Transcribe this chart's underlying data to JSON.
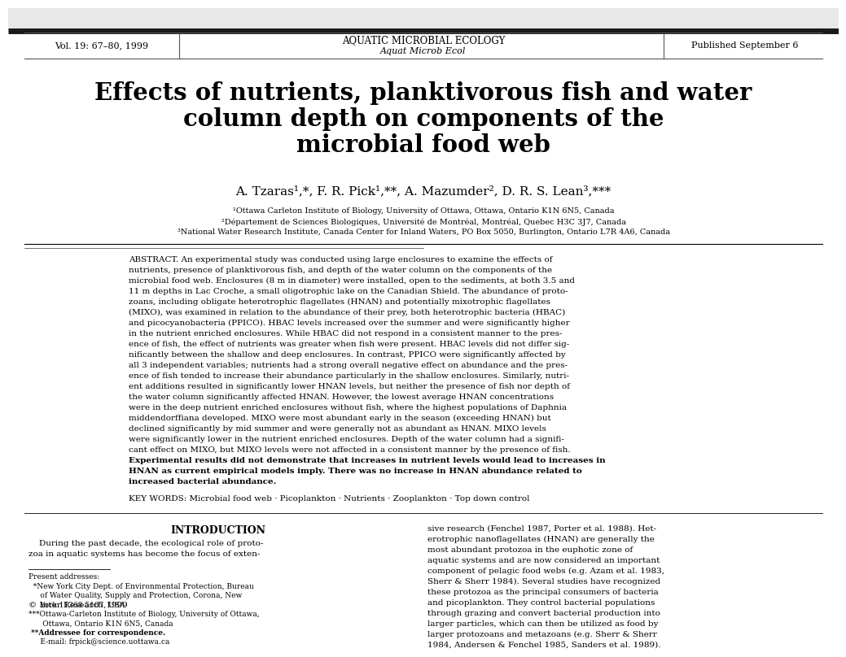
{
  "background_color": "#ffffff",
  "header_left": "Vol. 19: 67–80, 1999",
  "header_center1": "AQUATIC MICROBIAL ECOLOGY",
  "header_center2": "Aquat Microb Ecol",
  "header_right": "Published September 6",
  "title_line1": "Effects of nutrients, planktivorous fish and water",
  "title_line2": "column depth on components of the",
  "title_line3": "microbial food web",
  "authors": "A. Tzaras¹,*, F. R. Pick¹,**, A. Mazumder², D. R. S. Lean³,***",
  "aff1": "¹Ottawa Carleton Institute of Biology, University of Ottawa, Ottawa, Ontario K1N 6N5, Canada",
  "aff2": "²Département de Sciences Biologiques, Université de Montréal, Montréal, Quebec H3C 3J7, Canada",
  "aff3": "³National Water Research Institute, Canada Center for Inland Waters, PO Box 5050, Burlington, Ontario L7R 4A6, Canada",
  "abstract_label": "ABSTRACT.",
  "abstract_body": "An experimental study was conducted using large enclosures to examine the effects of nutrients, presence of planktivorous fish, and depth of the water column on the components of the microbial food web. Enclosures (8 m in diameter) were installed, open to the sediments, at both 3.5 and 11 m depths in Lac Croche, a small oligotrophic lake on the Canadian Shield. The abundance of proto-zoans, including obligate heterotrophic flagellates (HNAN) and potentially mixotrophic flagellates (MIXO), was examined in relation to the abundance of their prey, both heterotrophic bacteria (HBAC) and picocyanobacteria (PPICO). HBAC levels increased over the summer and were significantly higher in the nutrient enriched enclosures. While HBAC did not respond in a consistent manner to the pres-ence of fish, the effect of nutrients was greater when fish were present. HBAC levels did not differ sig-nificantly between the shallow and deep enclosures. In contrast, PPICO were significantly affected by all 3 independent variables; nutrients had a strong overall negative effect on abundance and the pres-ence of fish tended to increase their abundance particularly in the shallow enclosures. Similarly, nutri-ent additions resulted in significantly lower HNAN levels, but neither the presence of fish nor depth of the water column significantly affected HNAN. However, the lowest average HNAN concentrations were in the deep nutrient enriched enclosures without fish, where the highest populations of Daphnia middendorffiana developed. MIXO were most abundant early in the season (exceeding HNAN) but declined significantly by mid summer and were generally not as abundant as HNAN. MIXO levels were significantly lower in the nutrient enriched enclosures. Depth of the water column had a signifi-cant effect on MIXO, but MIXO levels were not affected in a consistent manner by the presence of fish. Experimental results did not demonstrate that increases in nutrient levels would lead to increases in HNAN as current empirical models imply. There was no increase in HNAN abundance related to increased bacterial abundance.",
  "keywords": "KEY WORDS: Microbial food web · Picoplankton · Nutrients · Zooplankton · Top down control",
  "intro_heading": "INTRODUCTION",
  "intro_col1_line1": "    During the past decade, the ecological role of proto-",
  "intro_col1_line2": "zoa in aquatic systems has become the focus of exten-",
  "intro_col2": "sive research (Fenchel 1987, Porter et al. 1988). Het-\nerotrophic nanoflagellates (HNAN) are generally the\nmost abundant protozoa in the euphotic zone of\naquatic systems and are now considered an important\ncomponent of pelagic food webs (e.g. Azam et al. 1983,\nSherr & Sherr 1984). Several studies have recognized\nthese protozoa as the principal consumers of bacteria\nand picoplankton. They control bacterial populations\nthrough grazing and convert bacterial production into\nlarger particles, which can then be utilized as food by\nlarger protozoans and metazoans (e.g. Sherr & Sherr\n1984, Andersen & Fenchel 1985, Sanders et al. 1989).",
  "footnote_text": "Present addresses:\n  *New York City Dept. of Environmental Protection, Bureau\n     of Water Quality, Supply and Protection, Corona, New\n     York 11368 5107, USA\n***Ottawa-Carleton Institute of Biology, University of Ottawa,\n      Ottawa, Ontario K1N 6N5, Canada\n **Addressee for correspondence.\n     E-mail: frpick@science.uottawa.ca",
  "copyright": "© Inter Research 1999",
  "page_bg": "#f0f0f0",
  "header_bar_color": "#2a2a2a"
}
